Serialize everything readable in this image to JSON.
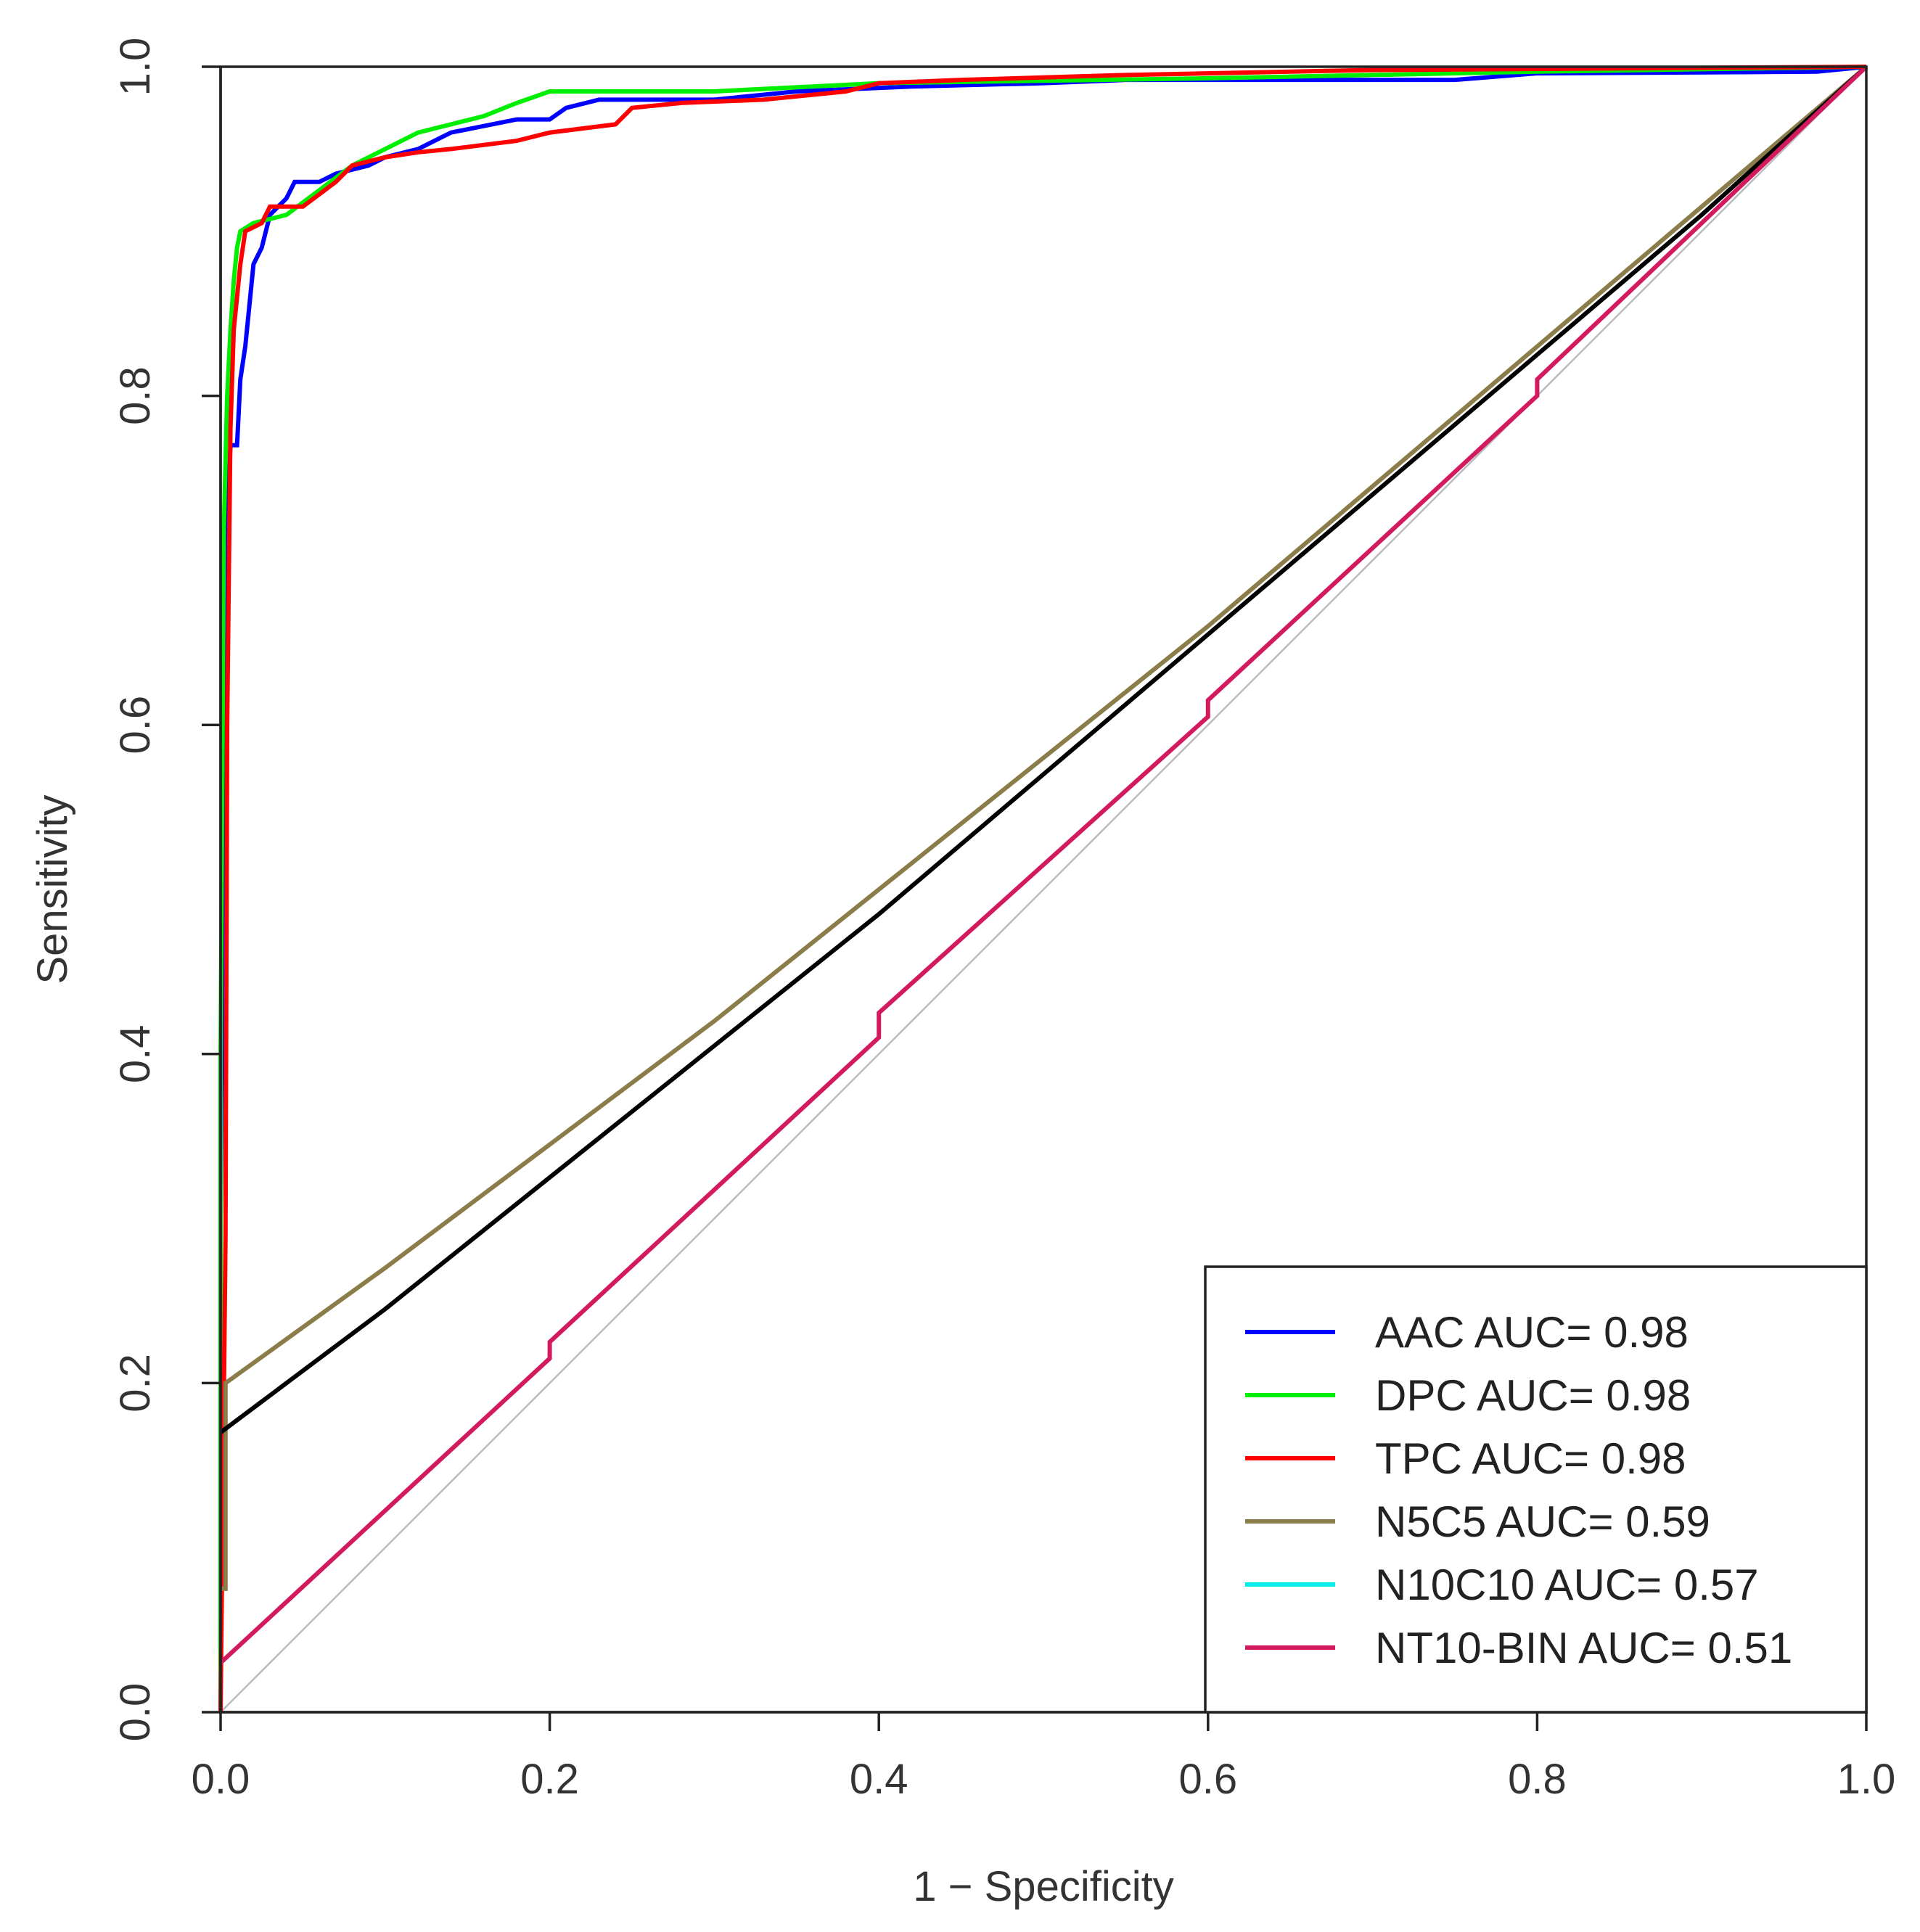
{
  "chart_data": {
    "type": "line",
    "title": "",
    "xlabel": "1 − Specificity",
    "ylabel": "Sensitivity",
    "xlim": [
      0,
      1
    ],
    "ylim": [
      0,
      1
    ],
    "grid": false,
    "legend_position": "bottom-right",
    "x_ticks": [
      {
        "value": 0.0,
        "label": "0.0"
      },
      {
        "value": 0.2,
        "label": "0.2"
      },
      {
        "value": 0.4,
        "label": "0.4"
      },
      {
        "value": 0.6,
        "label": "0.6"
      },
      {
        "value": 0.8,
        "label": "0.8"
      },
      {
        "value": 1.0,
        "label": "1.0"
      }
    ],
    "y_ticks": [
      {
        "value": 0.0,
        "label": "0.0"
      },
      {
        "value": 0.2,
        "label": "0.2"
      },
      {
        "value": 0.4,
        "label": "0.4"
      },
      {
        "value": 0.6,
        "label": "0.6"
      },
      {
        "value": 0.8,
        "label": "0.8"
      },
      {
        "value": 1.0,
        "label": "1.0"
      }
    ],
    "reference_line": {
      "color": "#bbbbbb",
      "points": [
        [
          0,
          0
        ],
        [
          1,
          1
        ]
      ]
    },
    "series": [
      {
        "name": "AAC AUC= 0.98",
        "color": "#0000ff",
        "in_legend": true,
        "points": [
          [
            0,
            0
          ],
          [
            0,
            0.3
          ],
          [
            0.003,
            0.7
          ],
          [
            0.006,
            0.77
          ],
          [
            0.01,
            0.77
          ],
          [
            0.012,
            0.81
          ],
          [
            0.015,
            0.83
          ],
          [
            0.018,
            0.86
          ],
          [
            0.02,
            0.88
          ],
          [
            0.025,
            0.89
          ],
          [
            0.03,
            0.91
          ],
          [
            0.04,
            0.92
          ],
          [
            0.045,
            0.93
          ],
          [
            0.06,
            0.93
          ],
          [
            0.07,
            0.935
          ],
          [
            0.09,
            0.94
          ],
          [
            0.1,
            0.945
          ],
          [
            0.12,
            0.95
          ],
          [
            0.14,
            0.96
          ],
          [
            0.18,
            0.968
          ],
          [
            0.2,
            0.968
          ],
          [
            0.21,
            0.975
          ],
          [
            0.23,
            0.98
          ],
          [
            0.3,
            0.98
          ],
          [
            0.35,
            0.985
          ],
          [
            0.42,
            0.988
          ],
          [
            0.5,
            0.99
          ],
          [
            0.55,
            0.992
          ],
          [
            0.75,
            0.992
          ],
          [
            0.8,
            0.996
          ],
          [
            0.97,
            0.997
          ],
          [
            1,
            1
          ]
        ]
      },
      {
        "name": "DPC AUC= 0.98",
        "color": "#00ee00",
        "in_legend": true,
        "points": [
          [
            0,
            0
          ],
          [
            0,
            0.4
          ],
          [
            0.002,
            0.72
          ],
          [
            0.004,
            0.8
          ],
          [
            0.006,
            0.84
          ],
          [
            0.008,
            0.87
          ],
          [
            0.01,
            0.89
          ],
          [
            0.012,
            0.9
          ],
          [
            0.02,
            0.905
          ],
          [
            0.04,
            0.91
          ],
          [
            0.06,
            0.925
          ],
          [
            0.08,
            0.94
          ],
          [
            0.1,
            0.95
          ],
          [
            0.12,
            0.96
          ],
          [
            0.14,
            0.965
          ],
          [
            0.16,
            0.97
          ],
          [
            0.18,
            0.978
          ],
          [
            0.2,
            0.985
          ],
          [
            0.3,
            0.985
          ],
          [
            0.4,
            0.99
          ],
          [
            0.6,
            0.993
          ],
          [
            0.8,
            0.997
          ],
          [
            1,
            1
          ]
        ]
      },
      {
        "name": "TPC AUC= 0.98",
        "color": "#ff0000",
        "in_legend": true,
        "points": [
          [
            0,
            0
          ],
          [
            0.003,
            0.29
          ],
          [
            0.004,
            0.6
          ],
          [
            0.006,
            0.78
          ],
          [
            0.008,
            0.84
          ],
          [
            0.012,
            0.88
          ],
          [
            0.015,
            0.9
          ],
          [
            0.025,
            0.905
          ],
          [
            0.03,
            0.915
          ],
          [
            0.05,
            0.915
          ],
          [
            0.07,
            0.93
          ],
          [
            0.08,
            0.94
          ],
          [
            0.1,
            0.945
          ],
          [
            0.12,
            0.948
          ],
          [
            0.14,
            0.95
          ],
          [
            0.18,
            0.955
          ],
          [
            0.2,
            0.96
          ],
          [
            0.24,
            0.965
          ],
          [
            0.25,
            0.975
          ],
          [
            0.28,
            0.978
          ],
          [
            0.33,
            0.98
          ],
          [
            0.38,
            0.985
          ],
          [
            0.4,
            0.99
          ],
          [
            0.45,
            0.992
          ],
          [
            0.55,
            0.995
          ],
          [
            0.7,
            0.998
          ],
          [
            1,
            1
          ]
        ]
      },
      {
        "name": "N5C5 AUC= 0.59",
        "color": "#8b7d4a",
        "in_legend": true,
        "points": [
          [
            0,
            0.075
          ],
          [
            0.003,
            0.075
          ],
          [
            0.003,
            0.2
          ],
          [
            0.1,
            0.27
          ],
          [
            0.2,
            0.345
          ],
          [
            0.3,
            0.42
          ],
          [
            0.4,
            0.5
          ],
          [
            0.5,
            0.58
          ],
          [
            0.6,
            0.66
          ],
          [
            0.7,
            0.745
          ],
          [
            0.8,
            0.83
          ],
          [
            0.9,
            0.915
          ],
          [
            1,
            1
          ]
        ]
      },
      {
        "name": "N10C10 AUC= 0.57",
        "color": "#00eeee",
        "in_legend": true,
        "points": []
      },
      {
        "name": "",
        "color": "#000000",
        "in_legend": false,
        "points": [
          [
            0,
            0.17
          ],
          [
            0.1,
            0.245
          ],
          [
            0.2,
            0.325
          ],
          [
            0.3,
            0.405
          ],
          [
            0.4,
            0.485
          ],
          [
            0.5,
            0.57
          ],
          [
            0.6,
            0.655
          ],
          [
            0.7,
            0.74
          ],
          [
            0.8,
            0.825
          ],
          [
            0.9,
            0.91
          ],
          [
            1,
            1
          ]
        ]
      },
      {
        "name": "NT10-BIN AUC= 0.51",
        "color": "#d41a5e",
        "in_legend": true,
        "points": [
          [
            0,
            0.03
          ],
          [
            0.2,
            0.215
          ],
          [
            0.2,
            0.225
          ],
          [
            0.4,
            0.41
          ],
          [
            0.4,
            0.425
          ],
          [
            0.6,
            0.605
          ],
          [
            0.6,
            0.615
          ],
          [
            0.8,
            0.8
          ],
          [
            0.8,
            0.81
          ],
          [
            1,
            1
          ]
        ]
      }
    ]
  }
}
